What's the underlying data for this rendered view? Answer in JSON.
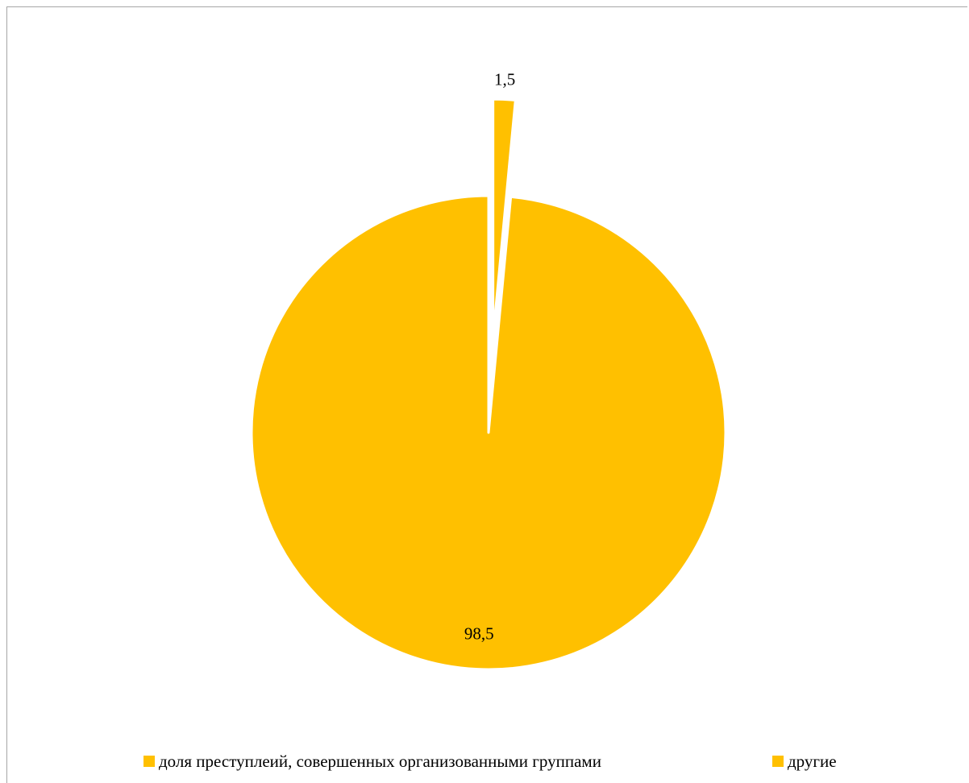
{
  "chart_data": {
    "type": "pie",
    "title": "",
    "slices": [
      {
        "name": "доля преступлеий, совершенных организованными группами",
        "value": 1.5,
        "label": "1,5",
        "color": "#FFC000",
        "exploded": true
      },
      {
        "name": "другие",
        "value": 98.5,
        "label": "98,5",
        "color": "#FFC000",
        "exploded": false
      }
    ],
    "legend_position": "bottom"
  },
  "legend": {
    "items": [
      {
        "label": "доля преступлеий, совершенных организованными группами",
        "color": "#FFC000"
      },
      {
        "label": "другие",
        "color": "#FFC000"
      }
    ]
  }
}
